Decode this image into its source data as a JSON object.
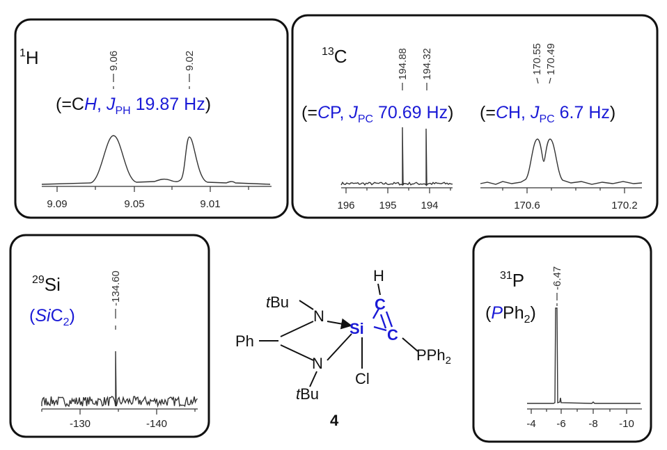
{
  "proton_panel": {
    "nucleus": {
      "mass": "1",
      "symbol": "H"
    },
    "peak_labels": [
      "9.06",
      "9.02"
    ],
    "assignment": [
      "(=C",
      "H",
      ", ",
      "J",
      "PH",
      " 19.87 Hz",
      ")"
    ],
    "axis_labels": [
      "9.09",
      "9.05",
      "9.01"
    ]
  },
  "carbon_panel": {
    "nucleus": {
      "mass": "13",
      "symbol": "C"
    },
    "peak_labels": [
      "194.88",
      "194.32",
      "170.55",
      "170.49"
    ],
    "assignments": [
      [
        "(=",
        "C",
        "P, ",
        "J",
        "PC",
        " 70.69 Hz",
        ")"
      ],
      [
        "(=",
        "C",
        "H, ",
        "J",
        "PC",
        " 6.7 Hz",
        ")"
      ]
    ],
    "axis_labels": [
      [
        "196",
        "195",
        "194"
      ],
      [
        "170.6",
        "170.2"
      ]
    ]
  },
  "silicon_panel": {
    "nucleus": {
      "mass": "29",
      "symbol": "Si"
    },
    "peak_labels": [
      "-134.60"
    ],
    "assignment": [
      "(",
      "Si",
      "C",
      "2",
      ")"
    ],
    "axis_labels": [
      "-130",
      "-140"
    ]
  },
  "phosphorus_panel": {
    "nucleus": {
      "mass": "31",
      "symbol": "P"
    },
    "peak_labels": [
      "-6.47"
    ],
    "assignment": [
      "(",
      "P",
      "Ph",
      "2",
      ")"
    ],
    "axis_labels": [
      "-4",
      "-6",
      "-8",
      "-10"
    ]
  },
  "structure": {
    "top_tbu": [
      "t",
      "Bu"
    ],
    "top_n": "N",
    "phenyl": "Ph",
    "silicon": "Si",
    "carbon_top": "C",
    "hydrogen": "H",
    "carbon_right": "C",
    "phosphine": [
      "PPh",
      "2"
    ],
    "chlorine": "Cl",
    "bottom_n": "N",
    "bottom_tbu": [
      "t",
      "Bu"
    ],
    "compound_number": "4"
  }
}
